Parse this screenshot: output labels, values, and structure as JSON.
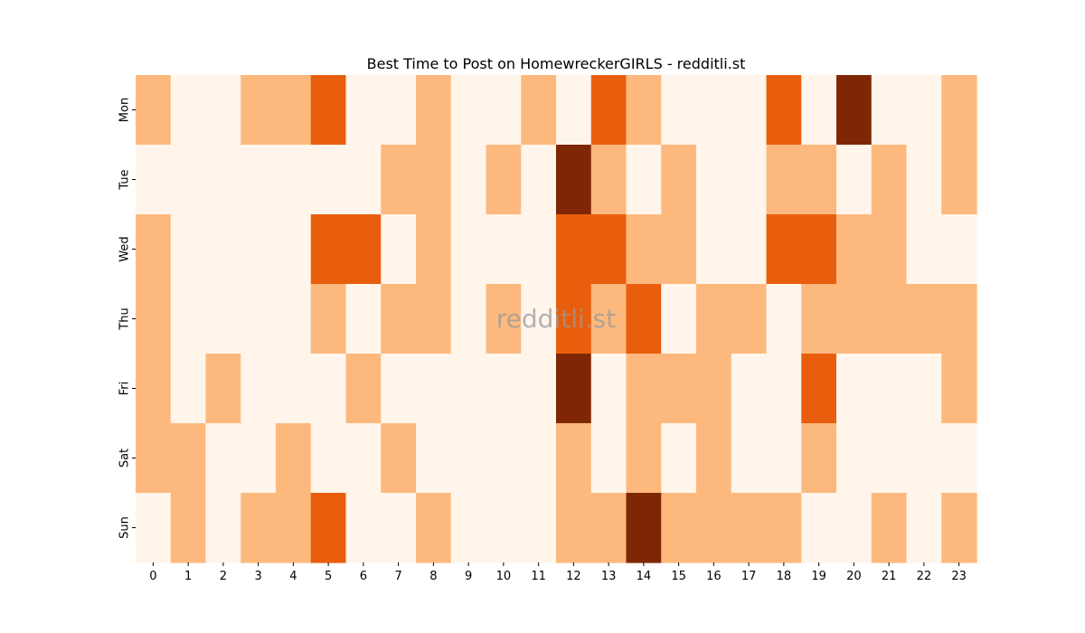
{
  "chart_data": {
    "type": "heatmap",
    "title": "Best Time to Post on HomewreckerGIRLS - redditli.st",
    "watermark": "redditli.st",
    "x": [
      "0",
      "1",
      "2",
      "3",
      "4",
      "5",
      "6",
      "7",
      "8",
      "9",
      "10",
      "11",
      "12",
      "13",
      "14",
      "15",
      "16",
      "17",
      "18",
      "19",
      "20",
      "21",
      "22",
      "23"
    ],
    "y": [
      "Mon",
      "Tue",
      "Wed",
      "Thu",
      "Fri",
      "Sat",
      "Sun"
    ],
    "levels": {
      "0": "#fff5eb",
      "1": "#fdb97d",
      "2": "#e95e0d",
      "3": "#7f2704"
    },
    "values": [
      [
        1,
        0,
        0,
        1,
        1,
        2,
        0,
        0,
        1,
        0,
        0,
        1,
        0,
        2,
        1,
        0,
        0,
        0,
        2,
        0,
        3,
        0,
        0,
        1
      ],
      [
        0,
        0,
        0,
        0,
        0,
        0,
        0,
        1,
        1,
        0,
        1,
        0,
        3,
        1,
        0,
        1,
        0,
        0,
        1,
        1,
        0,
        1,
        0,
        1
      ],
      [
        1,
        0,
        0,
        0,
        0,
        2,
        2,
        0,
        1,
        0,
        0,
        0,
        2,
        2,
        1,
        1,
        0,
        0,
        2,
        2,
        1,
        1,
        0,
        0
      ],
      [
        1,
        0,
        0,
        0,
        0,
        1,
        0,
        1,
        1,
        0,
        1,
        0,
        2,
        1,
        2,
        0,
        1,
        1,
        0,
        1,
        1,
        1,
        1,
        1
      ],
      [
        1,
        0,
        1,
        0,
        0,
        0,
        1,
        0,
        0,
        0,
        0,
        0,
        3,
        0,
        1,
        1,
        1,
        0,
        0,
        2,
        0,
        0,
        0,
        1
      ],
      [
        1,
        1,
        0,
        0,
        1,
        0,
        0,
        1,
        0,
        0,
        0,
        0,
        1,
        0,
        1,
        0,
        1,
        0,
        0,
        1,
        0,
        0,
        0,
        0
      ],
      [
        0,
        1,
        0,
        1,
        1,
        2,
        0,
        0,
        1,
        0,
        0,
        0,
        1,
        1,
        3,
        1,
        1,
        1,
        1,
        0,
        0,
        1,
        0,
        1
      ]
    ]
  }
}
